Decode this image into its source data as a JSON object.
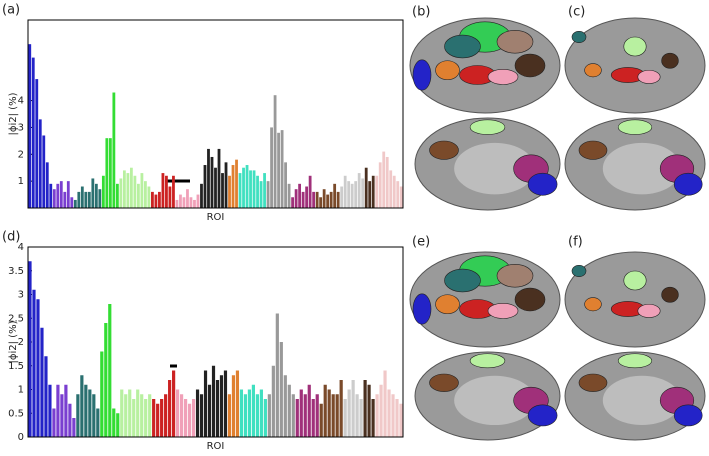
{
  "chart_data": [
    {
      "type": "bar",
      "panel": "(a)",
      "ylabel": "|ϕi2| (%)",
      "xlabel": "ROI",
      "ylim": [
        0,
        7
      ],
      "yticks": [
        1,
        2,
        3,
        4
      ],
      "series": [
        {
          "color": "#2323c8",
          "values": [
            6.1,
            5.6,
            4.8,
            3.3,
            2.7,
            1.7,
            0.9
          ]
        },
        {
          "color": "#7a3fd0",
          "values": [
            0.7,
            0.9,
            1.0,
            0.6,
            1.0,
            0.4
          ]
        },
        {
          "color": "#2a7070",
          "values": [
            0.3,
            0.6,
            0.8,
            0.6,
            0.6,
            1.1,
            0.9,
            0.7
          ]
        },
        {
          "color": "#33dd33",
          "values": [
            1.2,
            2.6,
            2.6,
            4.3,
            0.9
          ]
        },
        {
          "color": "#b8f0a0",
          "values": [
            1.1,
            1.4,
            1.3,
            1.5,
            1.2,
            0.9,
            1.3,
            1.0,
            0.8
          ]
        },
        {
          "color": "#cc2222",
          "values": [
            0.6,
            0.5,
            0.6,
            1.3,
            1.2,
            0.8,
            1.2
          ]
        },
        {
          "color": "#f0a0b8",
          "values": [
            0.3,
            0.5,
            0.4,
            0.7,
            0.4,
            0.3,
            0.5
          ]
        },
        {
          "color": "#222222",
          "values": [
            0.9,
            1.6,
            2.2,
            1.9,
            1.5,
            2.2,
            1.3,
            1.7
          ]
        },
        {
          "color": "#e08030",
          "values": [
            1.2,
            1.6,
            1.8
          ]
        },
        {
          "color": "#40e0c0",
          "values": [
            1.3,
            1.5,
            1.6,
            1.4,
            1.4,
            1.2,
            1.0,
            1.3
          ]
        },
        {
          "color": "#999999",
          "values": [
            1.0,
            3.0,
            4.2,
            2.8,
            2.9,
            1.7,
            0.9
          ]
        },
        {
          "color": "#a0307a",
          "values": [
            0.4,
            0.7,
            0.9,
            0.6,
            0.8,
            1.2,
            0.6
          ]
        },
        {
          "color": "#7a4a2a",
          "values": [
            0.6,
            0.4,
            0.7,
            0.5,
            0.6,
            0.9,
            0.6
          ]
        },
        {
          "color": "#cccccc",
          "values": [
            0.8,
            1.2,
            1.0,
            0.9,
            1.0,
            1.3,
            1.1
          ]
        },
        {
          "color": "#4a3020",
          "values": [
            1.5,
            1.0,
            1.2
          ]
        },
        {
          "color": "#f0c8c8",
          "values": [
            1.2,
            1.7,
            2.1,
            1.9,
            1.4,
            1.2,
            1.0,
            0.8
          ]
        }
      ]
    },
    {
      "type": "bar",
      "panel": "(d)",
      "ylabel": "|ϕi2| (%)",
      "xlabel": "ROI",
      "ylim": [
        0,
        4
      ],
      "yticks": [
        0,
        0.5,
        1,
        1.5,
        2,
        2.5,
        3,
        3.5,
        4
      ],
      "series": [
        {
          "color": "#2323c8",
          "values": [
            3.7,
            3.1,
            2.9,
            2.3,
            1.7,
            1.1
          ]
        },
        {
          "color": "#7a3fd0",
          "values": [
            0.6,
            1.1,
            0.9,
            1.1,
            0.7,
            0.4
          ]
        },
        {
          "color": "#2a7070",
          "values": [
            0.9,
            1.3,
            1.1,
            1.0,
            0.9,
            0.6
          ]
        },
        {
          "color": "#33dd33",
          "values": [
            1.8,
            2.4,
            2.8,
            0.6,
            0.5
          ]
        },
        {
          "color": "#b8f0a0",
          "values": [
            1.0,
            0.9,
            1.0,
            0.8,
            1.0,
            0.9,
            0.8,
            0.9
          ]
        },
        {
          "color": "#cc2222",
          "values": [
            0.8,
            0.7,
            0.8,
            0.9,
            1.2,
            1.4
          ]
        },
        {
          "color": "#f0a0b8",
          "values": [
            1.0,
            0.9,
            0.8,
            0.7,
            0.8
          ]
        },
        {
          "color": "#222222",
          "values": [
            1.0,
            0.9,
            1.4,
            1.1,
            1.5,
            1.2,
            1.3,
            1.4
          ]
        },
        {
          "color": "#e08030",
          "values": [
            0.9,
            1.3,
            1.4
          ]
        },
        {
          "color": "#40e0c0",
          "values": [
            1.0,
            0.9,
            1.0,
            1.1,
            0.9,
            1.0,
            0.8
          ]
        },
        {
          "color": "#999999",
          "values": [
            0.9,
            1.5,
            2.6,
            2.0,
            1.3,
            1.1,
            0.9
          ]
        },
        {
          "color": "#a0307a",
          "values": [
            0.8,
            1.0,
            0.9,
            1.1,
            0.8,
            0.9
          ]
        },
        {
          "color": "#7a4a2a",
          "values": [
            0.7,
            1.1,
            1.0,
            0.9,
            0.9,
            1.2
          ]
        },
        {
          "color": "#cccccc",
          "values": [
            0.8,
            1.0,
            1.2,
            0.9,
            0.8
          ]
        },
        {
          "color": "#4a3020",
          "values": [
            1.2,
            1.1,
            0.8
          ]
        },
        {
          "color": "#f0c8c8",
          "values": [
            0.9,
            1.1,
            1.4,
            1.0,
            0.9,
            0.8,
            0.7
          ]
        }
      ]
    }
  ],
  "brain_panels": [
    "(b)",
    "(c)",
    "(e)",
    "(f)"
  ]
}
